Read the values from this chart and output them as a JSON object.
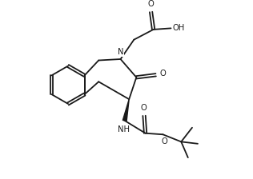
{
  "bg_color": "#ffffff",
  "line_color": "#1a1a1a",
  "line_width": 1.3,
  "figsize": [
    3.16,
    2.24
  ],
  "dpi": 100,
  "xlim": [
    0,
    10
  ],
  "ylim": [
    0,
    7.1
  ]
}
